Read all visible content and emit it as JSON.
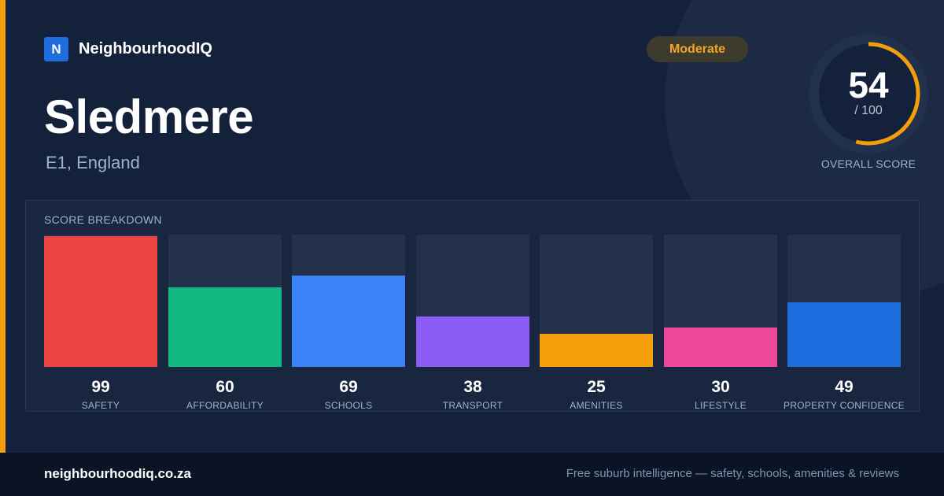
{
  "brand": {
    "logo_letter": "N",
    "name": "NeighbourhoodIQ"
  },
  "place": {
    "name": "Sledmere",
    "location": "E1, England"
  },
  "rating": {
    "badge": "Moderate",
    "score": "54",
    "max": "/ 100",
    "caption": "OVERALL SCORE",
    "score_fraction": 0.54
  },
  "colors": {
    "accent": "#f59e0b",
    "badge_text": "#f5a524",
    "ring": "#f59e0b",
    "ring_track": "#22314b"
  },
  "chart_data": {
    "type": "bar",
    "title": "SCORE BREAKDOWN",
    "ylim": [
      0,
      100
    ],
    "categories": [
      "SAFETY",
      "AFFORDABILITY",
      "SCHOOLS",
      "TRANSPORT",
      "AMENITIES",
      "LIFESTYLE",
      "PROPERTY CONFIDENCE"
    ],
    "values": [
      99,
      60,
      69,
      38,
      25,
      30,
      49
    ],
    "bar_colors": [
      "#ef4444",
      "#10b981",
      "#3b82f6",
      "#8b5cf6",
      "#f59e0b",
      "#ec4899",
      "#1d6fe0"
    ]
  },
  "footer": {
    "site": "neighbourhoodiq.co.za",
    "tagline": "Free suburb intelligence — safety, schools, amenities & reviews"
  }
}
